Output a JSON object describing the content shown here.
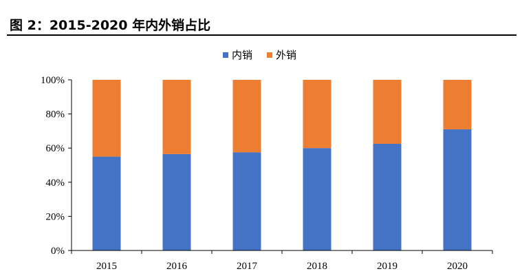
{
  "figure": {
    "title": "图 2：2015-2020 年内外销占比"
  },
  "chart_data": {
    "type": "bar",
    "stacked": true,
    "categories": [
      "2015",
      "2016",
      "2017",
      "2018",
      "2019",
      "2020"
    ],
    "series": [
      {
        "name": "内销",
        "values": [
          55,
          56.5,
          57.5,
          60,
          62.5,
          71
        ],
        "color": "#4472C4"
      },
      {
        "name": "外销",
        "values": [
          45,
          43.5,
          42.5,
          40,
          37.5,
          29
        ],
        "color": "#ED7D31"
      }
    ],
    "ylim": [
      0,
      100
    ],
    "yticks": [
      "0%",
      "20%",
      "40%",
      "60%",
      "80%",
      "100%"
    ],
    "legend": "top-center",
    "grid": false
  }
}
